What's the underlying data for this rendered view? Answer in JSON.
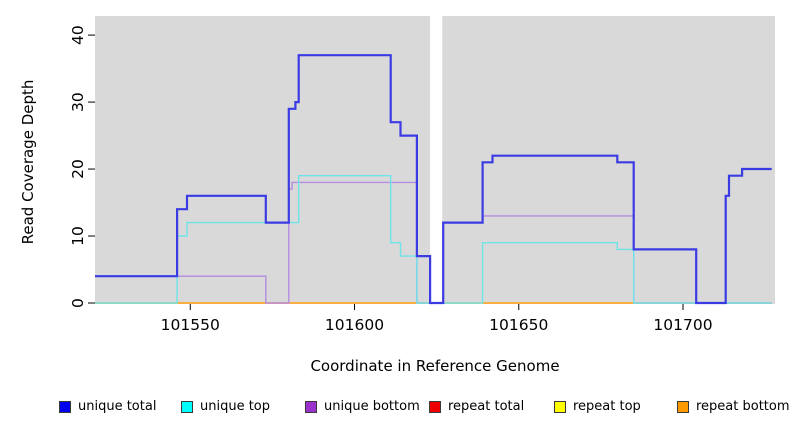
{
  "figure": {
    "xlabel": "Coordinate in Reference Genome",
    "ylabel": "Read Coverage Depth"
  },
  "chart_data": {
    "type": "line",
    "step": "after",
    "title": "",
    "xlabel": "Coordinate in Reference Genome",
    "ylabel": "Read Coverage Depth",
    "xlim": [
      101521,
      101728
    ],
    "ylim": [
      0,
      43
    ],
    "xticks": [
      101550,
      101600,
      101650,
      101700
    ],
    "yticks": [
      0,
      10,
      20,
      30,
      40
    ],
    "grid": false,
    "panel_bg": "#D9D9D9",
    "gap_region": [
      101623,
      101626.7
    ],
    "x_end": 101727,
    "legend_position": "bottom",
    "legend": [
      {
        "label": "unique total",
        "color": "#0000EE"
      },
      {
        "label": "unique top",
        "color": "#00FFFF"
      },
      {
        "label": "unique bottom",
        "color": "#9A32CD"
      },
      {
        "label": "repeat total",
        "color": "#EE0000"
      },
      {
        "label": "repeat top",
        "color": "#FFFF00"
      },
      {
        "label": "repeat bottom",
        "color": "#FF9900"
      }
    ],
    "series": [
      {
        "name": "repeat total",
        "line_color": "#D86070",
        "width": 1.3,
        "points": [
          [
            101521,
            0
          ]
        ]
      },
      {
        "name": "repeat top",
        "line_color": "#FFFF66",
        "width": 1.3,
        "points": [
          [
            101521,
            0
          ]
        ]
      },
      {
        "name": "repeat bottom",
        "line_color": "#FFA520",
        "width": 1.6,
        "points": [
          [
            101521,
            0
          ]
        ]
      },
      {
        "name": "unique bottom",
        "line_color": "#B48CE0",
        "width": 1.4,
        "points": [
          [
            101521,
            4
          ],
          [
            101573,
            0
          ],
          [
            101580,
            17
          ],
          [
            101581,
            18
          ],
          [
            101619,
            0
          ],
          [
            101627,
            12
          ],
          [
            101639,
            13
          ],
          [
            101685,
            0
          ]
        ]
      },
      {
        "name": "unique top",
        "line_color": "#6FE4E8",
        "width": 1.4,
        "points": [
          [
            101521,
            0
          ],
          [
            101546,
            10
          ],
          [
            101549,
            12
          ],
          [
            101583,
            19
          ],
          [
            101611,
            9
          ],
          [
            101614,
            7
          ],
          [
            101619,
            0
          ],
          [
            101639,
            9
          ],
          [
            101680,
            8
          ],
          [
            101685,
            0
          ]
        ]
      },
      {
        "name": "unique total",
        "line_color": "#3B3BE4",
        "width": 2.2,
        "points": [
          [
            101521,
            4
          ],
          [
            101546,
            14
          ],
          [
            101549,
            16
          ],
          [
            101573,
            12
          ],
          [
            101580,
            29
          ],
          [
            101582,
            30
          ],
          [
            101583,
            37
          ],
          [
            101611,
            27
          ],
          [
            101614,
            25
          ],
          [
            101619,
            7
          ],
          [
            101623,
            0
          ],
          [
            101627,
            12
          ],
          [
            101639,
            21
          ],
          [
            101642,
            22
          ],
          [
            101680,
            21
          ],
          [
            101685,
            8
          ],
          [
            101704,
            0
          ],
          [
            101713,
            16
          ],
          [
            101714,
            19
          ],
          [
            101718,
            20
          ]
        ]
      }
    ]
  }
}
